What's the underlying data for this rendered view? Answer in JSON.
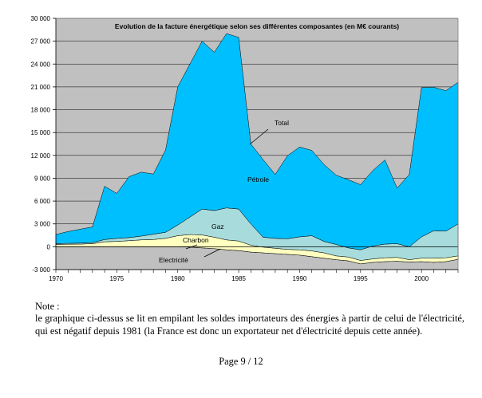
{
  "chart_data": {
    "type": "area",
    "title": "Evolution de la facture énergétique selon ses différentes composantes (en M€ courants)",
    "xlabel": "",
    "ylabel": "",
    "x": [
      1970,
      1971,
      1972,
      1973,
      1974,
      1975,
      1976,
      1977,
      1978,
      1979,
      1980,
      1981,
      1982,
      1983,
      1984,
      1985,
      1986,
      1987,
      1988,
      1989,
      1990,
      1991,
      1992,
      1993,
      1994,
      1995,
      1996,
      1997,
      1998,
      1999,
      2000,
      2001,
      2002,
      2003
    ],
    "xlim": [
      1970,
      2003
    ],
    "ylim": [
      -3000,
      30000
    ],
    "x_ticks": [
      "1970",
      "1975",
      "1980",
      "1985",
      "1990",
      "1995",
      "2000"
    ],
    "x_tick_values": [
      1970,
      1975,
      1980,
      1985,
      1990,
      1995,
      2000
    ],
    "y_ticks": [
      "-3 000",
      "0",
      "3 000",
      "6 000",
      "9 000",
      "12 000",
      "15 000",
      "18 000",
      "21 000",
      "24 000",
      "27 000",
      "30 000"
    ],
    "y_tick_values": [
      -3000,
      0,
      3000,
      6000,
      9000,
      12000,
      15000,
      18000,
      21000,
      24000,
      27000,
      30000
    ],
    "series": [
      {
        "name": "Electricité",
        "color": "#fffff0",
        "values": [
          0,
          0,
          0,
          0,
          0,
          0,
          0,
          0,
          0,
          0,
          0,
          -50,
          -150,
          -250,
          -400,
          -500,
          -700,
          -800,
          -900,
          -1000,
          -1100,
          -1300,
          -1500,
          -1700,
          -1850,
          -2250,
          -2050,
          -1950,
          -1900,
          -2000,
          -1950,
          -2050,
          -1950,
          -1650
        ]
      },
      {
        "name": "Charbon",
        "color": "#ffffc0",
        "values": [
          300,
          330,
          350,
          400,
          650,
          700,
          800,
          900,
          950,
          1100,
          1450,
          1650,
          1700,
          1500,
          1300,
          1250,
          900,
          750,
          700,
          650,
          700,
          750,
          700,
          500,
          500,
          450,
          450,
          500,
          500,
          300,
          450,
          550,
          500,
          450
        ]
      },
      {
        "name": "Gaz",
        "color": "#a8dcdc",
        "values": [
          100,
          120,
          130,
          150,
          300,
          400,
          400,
          500,
          700,
          800,
          1400,
          2300,
          3400,
          3500,
          4200,
          4200,
          2800,
          1300,
          1300,
          1400,
          1700,
          2000,
          1500,
          1500,
          1200,
          1400,
          1700,
          1800,
          1800,
          1700,
          2800,
          3600,
          3500,
          4200
        ]
      },
      {
        "name": "Pétrole",
        "color": "#00bfff",
        "values": [
          1200,
          1550,
          1820,
          2050,
          7000,
          5900,
          8000,
          8400,
          7900,
          10800,
          18150,
          20100,
          22050,
          20800,
          22900,
          22550,
          10500,
          10200,
          8400,
          10900,
          11800,
          11200,
          10100,
          9100,
          8950,
          8550,
          9900,
          11050,
          7300,
          9500,
          19600,
          18850,
          18450,
          18600
        ]
      }
    ],
    "series_labels": {
      "total": "Total",
      "petrole": "Pétrole",
      "gaz": "Gaz",
      "charbon": "Charbon",
      "electricite": "Electricité"
    },
    "grid": {
      "horizontal": true,
      "vertical": false
    },
    "legend": "inline labels"
  },
  "note": {
    "title": "Note :",
    "body": "le graphique ci-dessus se lit en empilant les soldes importateurs des énergies à partir de celui de l'électricité, qui est négatif depuis 1981 (la France est donc un exportateur net d'électricité depuis cette année)."
  },
  "footer": {
    "page": "Page 9 / 12"
  }
}
